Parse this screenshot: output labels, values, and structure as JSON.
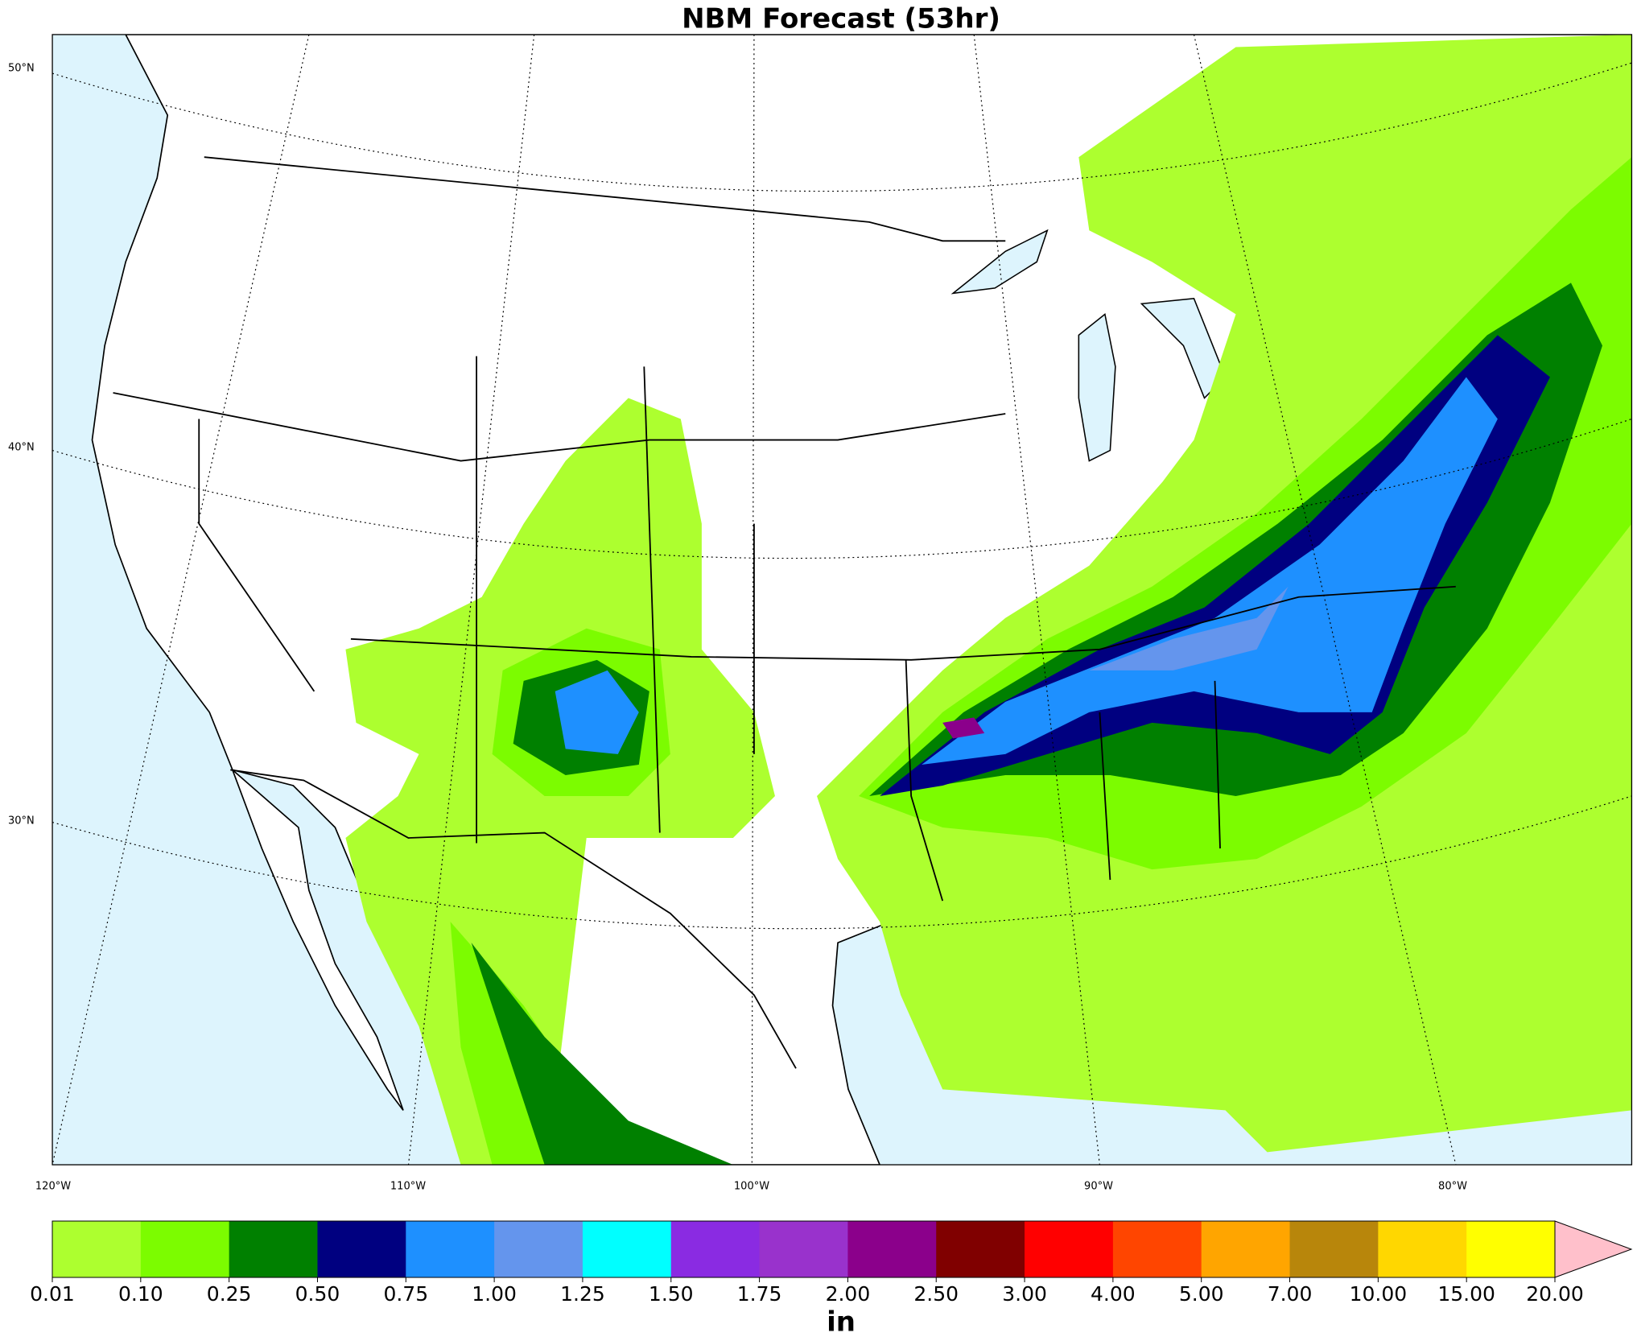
{
  "title": "NBM Forecast (53hr)",
  "lat_labels": [
    "50°N",
    "40°N",
    "30°N"
  ],
  "lon_labels": [
    "120°W",
    "110°W",
    "100°W",
    "90°W",
    "80°W"
  ],
  "colorbar": {
    "unit": "in",
    "ticks": [
      0.01,
      {
        "value": 0.1,
        "label": "0.10"
      },
      0.25,
      {
        "value": 0.5,
        "label": "0.50"
      },
      0.75,
      {
        "value": 1,
        "label": "1.00"
      },
      1.25,
      {
        "value": 1.5,
        "label": "1.50"
      },
      1.75,
      {
        "value": 2,
        "label": "2.00"
      },
      {
        "value": 2.5,
        "label": "2.50"
      },
      {
        "value": 3,
        "label": "3.00"
      },
      {
        "value": 4,
        "label": "4.00"
      },
      {
        "value": 5,
        "label": "5.00"
      },
      {
        "value": 7,
        "label": "7.00"
      },
      {
        "value": 10,
        "label": "10.00"
      },
      {
        "value": 15,
        "label": "15.00"
      },
      {
        "value": 20,
        "label": "20.00"
      }
    ],
    "colors": [
      "#adff2f",
      "#7cfc00",
      "#008000",
      "#000080",
      "#1e90ff",
      "#6495ed",
      "#00ffff",
      "#8a2be2",
      "#9932cc",
      "#8b008b",
      "#800000",
      "#ff0000",
      "#ff4500",
      "#ffa500",
      "#b8860b",
      "#ffd700",
      "#ffff00"
    ],
    "extend_color": "#ffc0cb"
  }
}
